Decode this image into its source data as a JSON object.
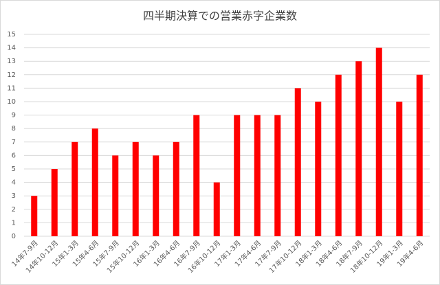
{
  "chart_data": {
    "type": "bar",
    "title": "四半期決算での営業赤字企業数",
    "categories": [
      "14年7-9月",
      "14年10-12月",
      "15年1-3月",
      "15年4-6月",
      "15年7-9月",
      "15年10-12月",
      "16年1-3月",
      "16年4-6月",
      "16年7-9月",
      "16年10-12月",
      "17年1-3月",
      "17年4-6月",
      "17年7-9月",
      "17年10-12月",
      "18年1-3月",
      "18年4-6月",
      "18年7-9月",
      "18年10-12月",
      "19年1-3月",
      "19年4-6月"
    ],
    "values": [
      3,
      5,
      7,
      8,
      6,
      7,
      6,
      7,
      9,
      4,
      9,
      9,
      9,
      11,
      10,
      12,
      13,
      14,
      10,
      12
    ],
    "color": "#ff0000",
    "ylim": [
      0,
      15
    ],
    "yticks": [
      0,
      1,
      2,
      3,
      4,
      5,
      6,
      7,
      8,
      9,
      10,
      11,
      12,
      13,
      14,
      15
    ],
    "grid": true
  }
}
